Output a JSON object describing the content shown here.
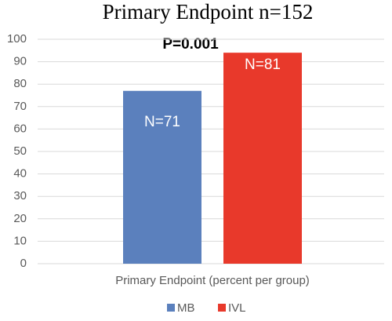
{
  "chart_data": {
    "type": "bar",
    "title": "Primary Endpoint n=152",
    "annotation": "P=0.001",
    "categories": [
      "Primary Endpoint (percent per group)"
    ],
    "series": [
      {
        "name": "MB",
        "color": "#5b80bd",
        "values": [
          77
        ],
        "annotation": "N=71"
      },
      {
        "name": "IVL",
        "color": "#e8392b",
        "values": [
          94
        ],
        "annotation": "N=81"
      }
    ],
    "ylim": [
      0,
      100
    ],
    "yticks": [
      0,
      10,
      20,
      30,
      40,
      50,
      60,
      70,
      80,
      90,
      100
    ],
    "grid": true
  }
}
